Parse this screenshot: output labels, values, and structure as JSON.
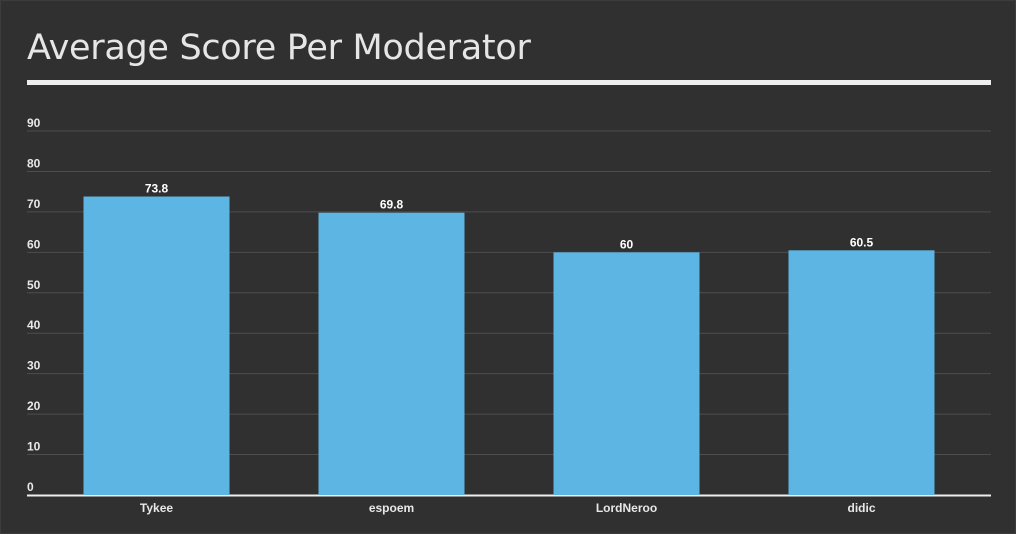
{
  "chart_data": {
    "type": "bar",
    "title": "Average Score Per Moderator",
    "xlabel": "",
    "ylabel": "",
    "categories": [
      "Tykee",
      "espoem",
      "LordNeroo",
      "didic"
    ],
    "values": [
      73.8,
      69.8,
      60,
      60.5
    ],
    "value_labels": [
      "73.8",
      "69.8",
      "60",
      "60.5"
    ],
    "ylim": [
      0,
      90
    ],
    "yticks": [
      0,
      10,
      20,
      30,
      40,
      50,
      60,
      70,
      80,
      90
    ],
    "grid": true,
    "legend": "none",
    "colors": {
      "bar": "#5db5e4",
      "background": "#303030",
      "grid": "#4d4d4d",
      "baseline": "#eeeeee",
      "text": "#e8e8e8"
    }
  }
}
